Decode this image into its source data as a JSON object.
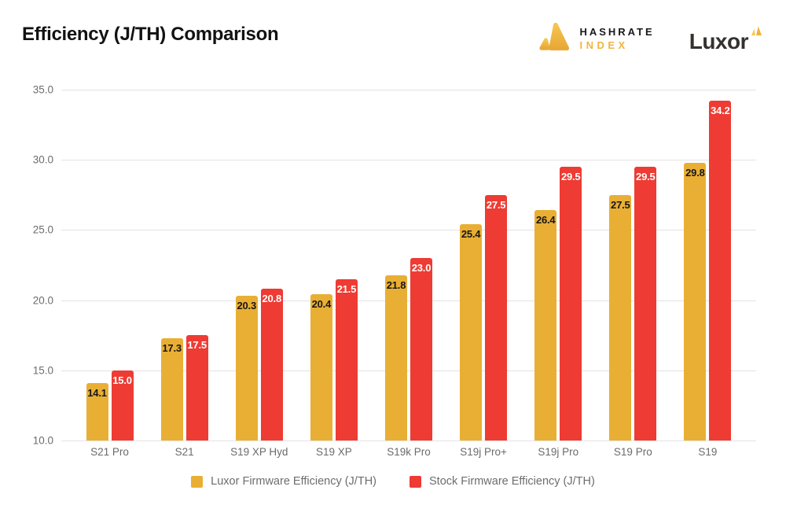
{
  "header": {
    "title": "Efficiency (J/TH) Comparison",
    "logos": {
      "hashrate_line1": "HASHRATE",
      "hashrate_line2": "INDEX",
      "luxor_word": "Luxor"
    }
  },
  "chart_data": {
    "type": "bar",
    "title": "Efficiency (J/TH) Comparison",
    "categories": [
      "S21 Pro",
      "S21",
      "S19 XP Hyd",
      "S19 XP",
      "S19k Pro",
      "S19j Pro+",
      "S19j Pro",
      "S19 Pro",
      "S19"
    ],
    "series": [
      {
        "name": "Luxor Firmware Efficiency (J/TH)",
        "color": "#E9AF34",
        "label_color": "#161616",
        "values": [
          14.1,
          17.3,
          20.3,
          20.4,
          21.8,
          25.4,
          26.4,
          27.5,
          29.8
        ]
      },
      {
        "name": "Stock Firmware Efficiency (J/TH)",
        "color": "#EE3B33",
        "label_color": "#FFFFFF",
        "values": [
          15.0,
          17.5,
          20.8,
          21.5,
          23.0,
          27.5,
          29.5,
          29.5,
          34.2
        ]
      }
    ],
    "xlabel": "",
    "ylabel": "",
    "ylim": [
      10,
      35
    ],
    "yticks": [
      10.0,
      15.0,
      20.0,
      25.0,
      30.0,
      35.0
    ],
    "grid": true,
    "legend_position": "bottom"
  },
  "colors": {
    "grid": "#E3E3E3",
    "axis_text": "#6d6d6d",
    "hashrate_gold": "#EFB53E"
  }
}
